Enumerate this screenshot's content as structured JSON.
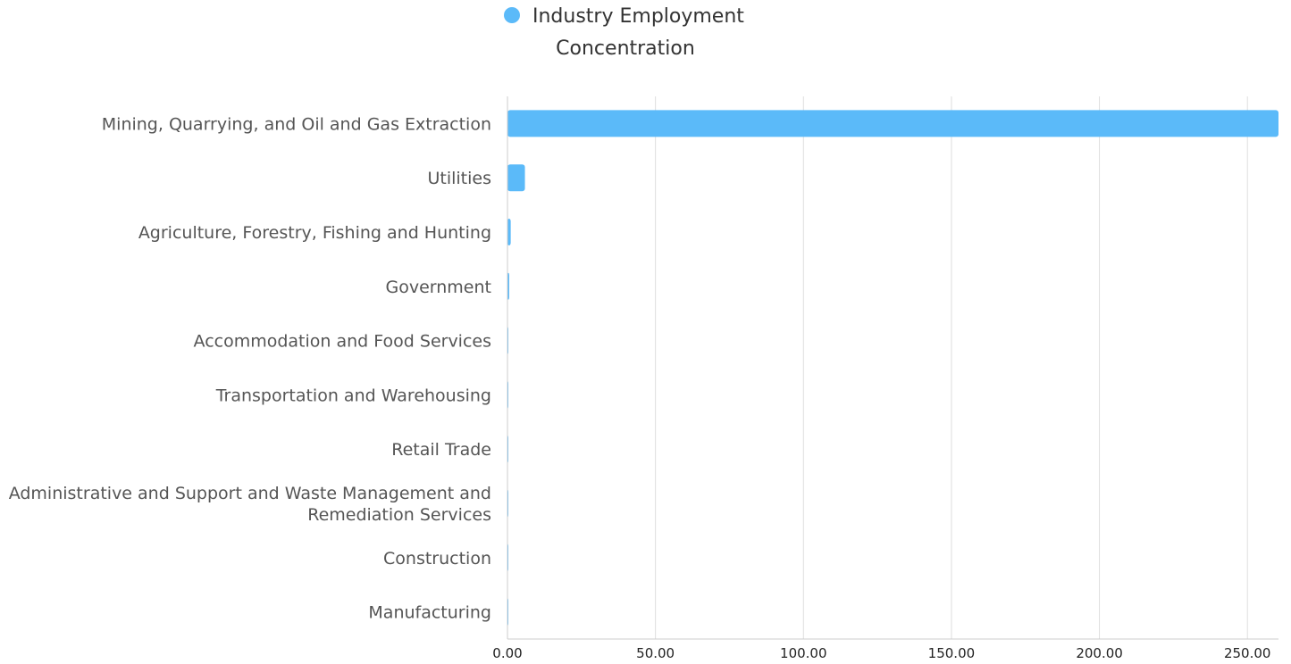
{
  "chart_data": {
    "type": "bar",
    "orientation": "horizontal",
    "categories": [
      "Mining, Quarrying, and Oil and Gas Extraction",
      "Utilities",
      "Agriculture, Forestry, Fishing and Hunting",
      "Government",
      "Accommodation and Food Services",
      "Transportation and Warehousing",
      "Retail Trade",
      "Administrative and Support and Waste Management and Remediation Services",
      "Construction",
      "Manufacturing"
    ],
    "series": [
      {
        "name": "Industry Employment Concentration",
        "color": "#5bbaf9",
        "values": [
          260.5,
          5.9,
          1.1,
          0.6,
          0.3,
          0.3,
          0.2,
          0.2,
          0.2,
          0.1
        ]
      }
    ],
    "x_ticks": [
      "0.00",
      "50.00",
      "100.00",
      "150.00",
      "200.00",
      "250.00"
    ],
    "xlim": [
      0,
      260.5
    ],
    "grid": true,
    "legend_position": "top-center",
    "legend_lines": [
      "Industry Employment",
      "Concentration"
    ]
  }
}
